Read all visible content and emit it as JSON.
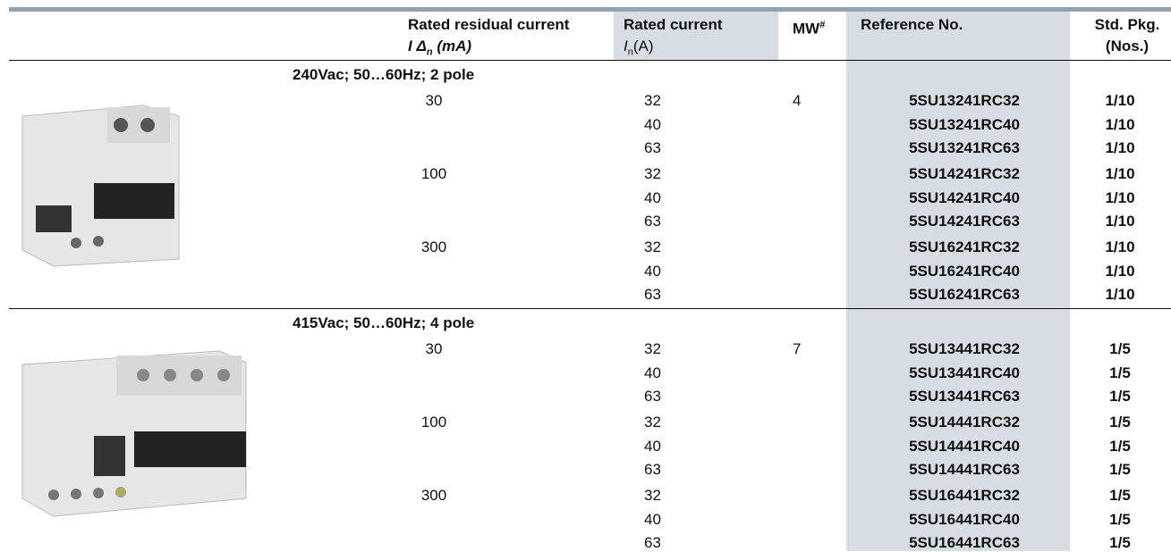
{
  "header": {
    "residual": {
      "title": "Rated residual current",
      "symbol": "I Δ",
      "subscript": "n",
      "unit": "(mA)"
    },
    "current": {
      "title": "Rated current",
      "symbol": "I",
      "subscript": "n",
      "unit": "(A)"
    },
    "mw": {
      "title": "MW",
      "superscript": "#"
    },
    "reference": {
      "title": "Reference No."
    },
    "pkg": {
      "title": "Std. Pkg.",
      "unit": "(Nos.)"
    }
  },
  "sections": [
    {
      "title": "240Vac; 50…60Hz; 2 pole",
      "mw": 4,
      "groups": [
        {
          "residual": 30,
          "rows": [
            {
              "current": 32,
              "reference": "5SU13241RC32",
              "pkg": "1/10"
            },
            {
              "current": 40,
              "reference": "5SU13241RC40",
              "pkg": "1/10"
            },
            {
              "current": 63,
              "reference": "5SU13241RC63",
              "pkg": "1/10"
            }
          ]
        },
        {
          "residual": 100,
          "rows": [
            {
              "current": 32,
              "reference": "5SU14241RC32",
              "pkg": "1/10"
            },
            {
              "current": 40,
              "reference": "5SU14241RC40",
              "pkg": "1/10"
            },
            {
              "current": 63,
              "reference": "5SU14241RC63",
              "pkg": "1/10"
            }
          ]
        },
        {
          "residual": 300,
          "rows": [
            {
              "current": 32,
              "reference": "5SU16241RC32",
              "pkg": "1/10"
            },
            {
              "current": 40,
              "reference": "5SU16241RC40",
              "pkg": "1/10"
            },
            {
              "current": 63,
              "reference": "5SU16241RC63",
              "pkg": "1/10"
            }
          ]
        }
      ]
    },
    {
      "title": "415Vac; 50…60Hz; 4 pole",
      "mw": 7,
      "groups": [
        {
          "residual": 30,
          "rows": [
            {
              "current": 32,
              "reference": "5SU13441RC32",
              "pkg": "1/5"
            },
            {
              "current": 40,
              "reference": "5SU13441RC40",
              "pkg": "1/5"
            },
            {
              "current": 63,
              "reference": "5SU13441RC63",
              "pkg": "1/5"
            }
          ]
        },
        {
          "residual": 100,
          "rows": [
            {
              "current": 32,
              "reference": "5SU14441RC32",
              "pkg": "1/5"
            },
            {
              "current": 40,
              "reference": "5SU14441RC40",
              "pkg": "1/5"
            },
            {
              "current": 63,
              "reference": "5SU14441RC63",
              "pkg": "1/5"
            }
          ]
        },
        {
          "residual": 300,
          "rows": [
            {
              "current": 32,
              "reference": "5SU16441RC32",
              "pkg": "1/5"
            },
            {
              "current": 40,
              "reference": "5SU16441RC40",
              "pkg": "1/5"
            },
            {
              "current": 63,
              "reference": "5SU16441RC63",
              "pkg": "1/5"
            }
          ]
        }
      ]
    }
  ]
}
